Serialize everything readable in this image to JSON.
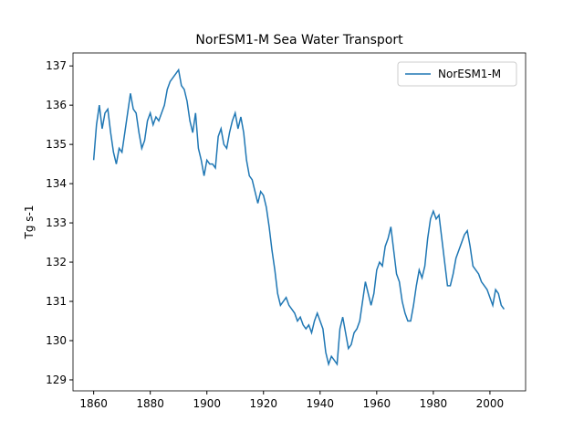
{
  "chart_data": {
    "type": "line",
    "title": "NorESM1-M Sea Water Transport",
    "ylabel": "Tg s-1",
    "x": [
      1860,
      1861,
      1862,
      1863,
      1864,
      1865,
      1866,
      1867,
      1868,
      1869,
      1870,
      1871,
      1872,
      1873,
      1874,
      1875,
      1876,
      1877,
      1878,
      1879,
      1880,
      1881,
      1882,
      1883,
      1884,
      1885,
      1886,
      1887,
      1888,
      1889,
      1890,
      1891,
      1892,
      1893,
      1894,
      1895,
      1896,
      1897,
      1898,
      1899,
      1900,
      1901,
      1902,
      1903,
      1904,
      1905,
      1906,
      1907,
      1908,
      1909,
      1910,
      1911,
      1912,
      1913,
      1914,
      1915,
      1916,
      1917,
      1918,
      1919,
      1920,
      1921,
      1922,
      1923,
      1924,
      1925,
      1926,
      1927,
      1928,
      1929,
      1930,
      1931,
      1932,
      1933,
      1934,
      1935,
      1936,
      1937,
      1938,
      1939,
      1940,
      1941,
      1942,
      1943,
      1944,
      1945,
      1946,
      1947,
      1948,
      1949,
      1950,
      1951,
      1952,
      1953,
      1954,
      1955,
      1956,
      1957,
      1958,
      1959,
      1960,
      1961,
      1962,
      1963,
      1964,
      1965,
      1966,
      1967,
      1968,
      1969,
      1970,
      1971,
      1972,
      1973,
      1974,
      1975,
      1976,
      1977,
      1978,
      1979,
      1980,
      1981,
      1982,
      1983,
      1984,
      1985,
      1986,
      1987,
      1988,
      1989,
      1990,
      1991,
      1992,
      1993,
      1994,
      1995,
      1996,
      1997,
      1998,
      1999,
      2000,
      2001,
      2002,
      2003,
      2004,
      2005
    ],
    "series": [
      {
        "name": "NorESM1-M",
        "color": "#1f77b4",
        "values": [
          134.6,
          135.5,
          136.0,
          135.4,
          135.8,
          135.9,
          135.3,
          134.8,
          134.5,
          134.9,
          134.8,
          135.3,
          135.8,
          136.3,
          135.9,
          135.8,
          135.3,
          134.9,
          135.1,
          135.6,
          135.8,
          135.5,
          135.7,
          135.6,
          135.8,
          136.0,
          136.4,
          136.6,
          136.7,
          136.8,
          136.9,
          136.5,
          136.4,
          136.1,
          135.6,
          135.3,
          135.8,
          134.9,
          134.6,
          134.2,
          134.6,
          134.5,
          134.5,
          134.4,
          135.2,
          135.4,
          135.0,
          134.9,
          135.3,
          135.6,
          135.8,
          135.4,
          135.7,
          135.3,
          134.6,
          134.2,
          134.1,
          133.8,
          133.5,
          133.8,
          133.7,
          133.4,
          132.9,
          132.3,
          131.8,
          131.2,
          130.9,
          131.0,
          131.1,
          130.9,
          130.8,
          130.7,
          130.5,
          130.6,
          130.4,
          130.3,
          130.4,
          130.2,
          130.5,
          130.7,
          130.5,
          130.3,
          129.7,
          129.4,
          129.6,
          129.5,
          129.4,
          130.3,
          130.6,
          130.2,
          129.8,
          129.9,
          130.2,
          130.3,
          130.5,
          131.0,
          131.5,
          131.2,
          130.9,
          131.2,
          131.8,
          132.0,
          131.9,
          132.4,
          132.6,
          132.9,
          132.3,
          131.7,
          131.5,
          131.0,
          130.7,
          130.5,
          130.5,
          130.9,
          131.4,
          131.8,
          131.6,
          131.9,
          132.6,
          133.1,
          133.3,
          133.1,
          133.2,
          132.6,
          132.0,
          131.4,
          131.4,
          131.7,
          132.1,
          132.3,
          132.5,
          132.7,
          132.8,
          132.4,
          131.9,
          131.8,
          131.7,
          131.5,
          131.4,
          131.3,
          131.1,
          130.9,
          131.3,
          131.2,
          130.9,
          130.8
        ]
      }
    ],
    "xlim": [
      1852.7,
      2012.6
    ],
    "ylim": [
      128.72,
      137.33
    ],
    "xticks": [
      1860,
      1880,
      1900,
      1920,
      1940,
      1960,
      1980,
      2000
    ],
    "yticks": [
      129,
      130,
      131,
      132,
      133,
      134,
      135,
      136,
      137
    ],
    "legend": "upper right"
  }
}
